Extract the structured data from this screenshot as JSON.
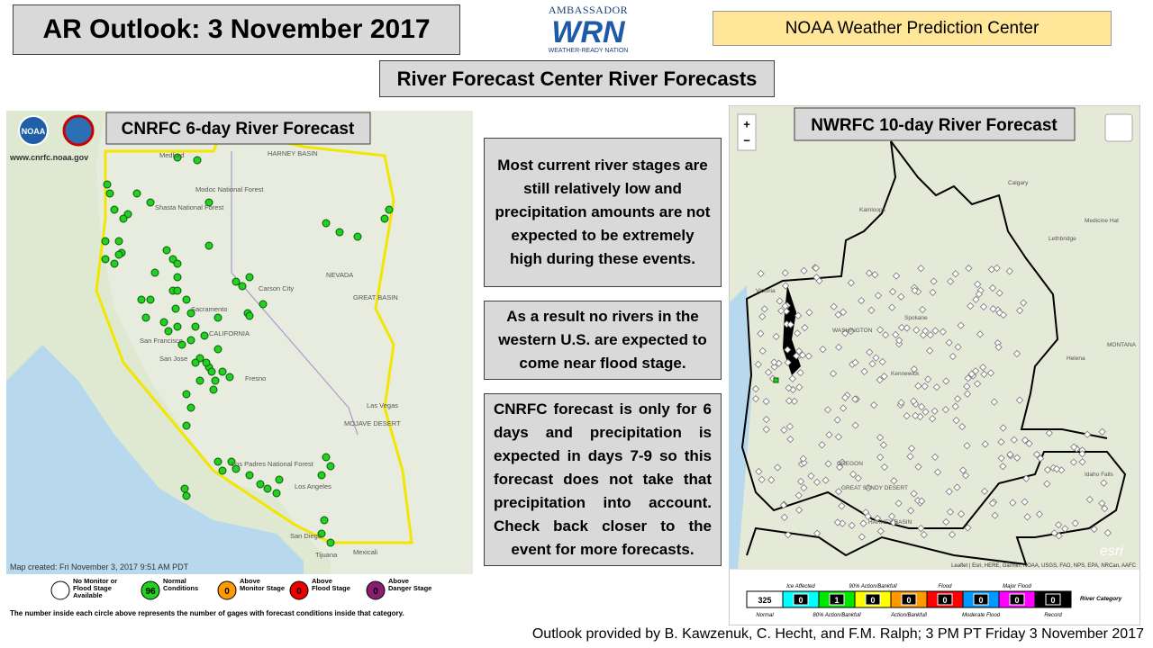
{
  "header": {
    "title": "AR Outlook: 3 November 2017",
    "logo_top": "AMBASSADOR",
    "logo_main": "WRN",
    "logo_bottom": "WEATHER-READY NATION",
    "org": "NOAA Weather Prediction Center",
    "subtitle": "River Forecast Center River Forecasts"
  },
  "left_map": {
    "title": "CNRFC 6-day River Forecast",
    "url": "www.cnrfc.noaa.gov",
    "logo": "NOAA",
    "created": "Map created: Fri November 3, 2017 9:51 AM PDT",
    "places": [
      "HARNEY BASIN",
      "Medford",
      "Modoc National Forest",
      "Shasta National Forest",
      "NEVADA",
      "Carson City",
      "GREAT BASIN",
      "Sacramento",
      "CALIFORNIA",
      "San Francisco",
      "San Jose",
      "Fresno",
      "Las Vegas",
      "MOJAVE DESERT",
      "Los Padres National Forest",
      "Los Angeles",
      "San Diego",
      "Tijuana",
      "Mexicali"
    ],
    "legend": [
      {
        "label": "No Monitor or Flood Stage Available"
      },
      {
        "count": "96",
        "label": "Normal Conditions"
      },
      {
        "count": "0",
        "label": "Above Monitor Stage"
      },
      {
        "count": "0",
        "label": "Above Flood Stage"
      },
      {
        "count": "0",
        "label": "Above Danger Stage"
      }
    ],
    "note": "The number inside each circle above represents the number of gages with forecast conditions inside that category."
  },
  "notes": [
    "Most current river stages are still relatively low and precipitation amounts are not expected to be extremely high during these events.",
    "As a result no rivers in the western U.S. are expected to come near flood stage.",
    "CNRFC forecast is only for 6 days and precipitation is expected in days 7-9 so this forecast does not take that precipitation into account. Check back closer to the event for more forecasts."
  ],
  "right_map": {
    "title": "NWRFC 10-day River Forecast",
    "zoom_in": "+",
    "zoom_out": "−",
    "places": [
      "Calgary",
      "Kamloops",
      "Medicine Hat",
      "Lethbridge",
      "Victoria",
      "Spokane",
      "WASHINGTON",
      "Kennewick",
      "MONTANA",
      "Helena",
      "OREGON",
      "GREAT SANDY DESERT",
      "HARNEY BASIN",
      "Idaho Falls"
    ],
    "esri": "esri",
    "attribution": "Leaflet | Esri, HERE, Garmin, NOAA, USGS, FAO, NPS, EPA, NRCan, AAFC",
    "scale": {
      "top_labels": [
        "Ice Affected",
        "90% Action/Bankfull",
        "Flood",
        "Major Flood"
      ],
      "bottom_labels": [
        "Normal",
        "80% Action/Bankfull",
        "Action/Bankfull",
        "Moderate Flood",
        "Record"
      ],
      "values": [
        "325",
        "0",
        "1",
        "0",
        "0",
        "0",
        "0",
        "0",
        "0"
      ],
      "caption": "River Category"
    }
  },
  "footer": "Outlook provided by B. Kawzenuk, C. Hecht, and F.M. Ralph; 3 PM PT Friday 3 November 2017"
}
